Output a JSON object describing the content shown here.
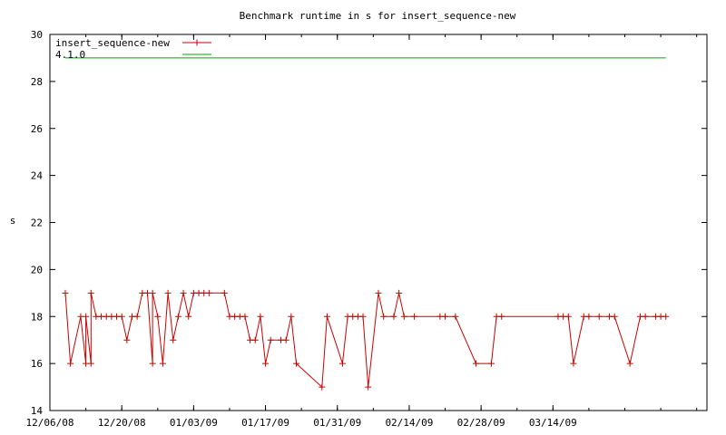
{
  "chart_data": {
    "type": "line",
    "title": "Benchmark runtime in s for insert_sequence-new",
    "xlabel": "",
    "ylabel": "s",
    "ylim": [
      14,
      30
    ],
    "yticks": [
      14,
      16,
      18,
      20,
      22,
      24,
      26,
      28,
      30
    ],
    "xlim": [
      "2008-12-06",
      "2009-04-13"
    ],
    "xticks": [
      "2008-12-06",
      "2008-12-20",
      "2009-01-03",
      "2009-01-17",
      "2009-01-31",
      "2009-02-14",
      "2009-02-28",
      "2009-03-14"
    ],
    "xtick_labels": [
      "12/06/08",
      "12/20/08",
      "01/03/09",
      "01/17/09",
      "01/31/09",
      "02/14/09",
      "02/28/09",
      "03/14/09"
    ],
    "legend_position": "top-left",
    "grid": false,
    "series": [
      {
        "name": "insert_sequence-new",
        "color": "#cc0000",
        "marker": "plus",
        "points": [
          [
            "2008-12-09",
            19
          ],
          [
            "2008-12-10",
            16
          ],
          [
            "2008-12-12",
            18
          ],
          [
            "2008-12-13",
            16
          ],
          [
            "2008-12-13",
            18
          ],
          [
            "2008-12-14",
            16
          ],
          [
            "2008-12-14",
            19
          ],
          [
            "2008-12-15",
            18
          ],
          [
            "2008-12-16",
            18
          ],
          [
            "2008-12-17",
            18
          ],
          [
            "2008-12-18",
            18
          ],
          [
            "2008-12-19",
            18
          ],
          [
            "2008-12-20",
            18
          ],
          [
            "2008-12-21",
            17
          ],
          [
            "2008-12-22",
            18
          ],
          [
            "2008-12-23",
            18
          ],
          [
            "2008-12-24",
            19
          ],
          [
            "2008-12-25",
            19
          ],
          [
            "2008-12-26",
            16
          ],
          [
            "2008-12-26",
            19
          ],
          [
            "2008-12-27",
            18
          ],
          [
            "2008-12-28",
            16
          ],
          [
            "2008-12-29",
            19
          ],
          [
            "2008-12-30",
            17
          ],
          [
            "2008-12-31",
            18
          ],
          [
            "2009-01-01",
            19
          ],
          [
            "2009-01-02",
            18
          ],
          [
            "2009-01-03",
            19
          ],
          [
            "2009-01-04",
            19
          ],
          [
            "2009-01-05",
            19
          ],
          [
            "2009-01-06",
            19
          ],
          [
            "2009-01-09",
            19
          ],
          [
            "2009-01-10",
            18
          ],
          [
            "2009-01-11",
            18
          ],
          [
            "2009-01-12",
            18
          ],
          [
            "2009-01-13",
            18
          ],
          [
            "2009-01-14",
            17
          ],
          [
            "2009-01-15",
            17
          ],
          [
            "2009-01-16",
            18
          ],
          [
            "2009-01-17",
            16
          ],
          [
            "2009-01-18",
            17
          ],
          [
            "2009-01-20",
            17
          ],
          [
            "2009-01-21",
            17
          ],
          [
            "2009-01-22",
            18
          ],
          [
            "2009-01-23",
            16
          ],
          [
            "2009-01-28",
            15
          ],
          [
            "2009-01-29",
            18
          ],
          [
            "2009-02-01",
            16
          ],
          [
            "2009-02-02",
            18
          ],
          [
            "2009-02-03",
            18
          ],
          [
            "2009-02-04",
            18
          ],
          [
            "2009-02-05",
            18
          ],
          [
            "2009-02-06",
            15
          ],
          [
            "2009-02-08",
            19
          ],
          [
            "2009-02-09",
            18
          ],
          [
            "2009-02-11",
            18
          ],
          [
            "2009-02-12",
            19
          ],
          [
            "2009-02-13",
            18
          ],
          [
            "2009-02-15",
            18
          ],
          [
            "2009-02-20",
            18
          ],
          [
            "2009-02-21",
            18
          ],
          [
            "2009-02-23",
            18
          ],
          [
            "2009-02-27",
            16
          ],
          [
            "2009-03-02",
            16
          ],
          [
            "2009-03-03",
            18
          ],
          [
            "2009-03-04",
            18
          ],
          [
            "2009-03-15",
            18
          ],
          [
            "2009-03-16",
            18
          ],
          [
            "2009-03-17",
            18
          ],
          [
            "2009-03-18",
            16
          ],
          [
            "2009-03-20",
            18
          ],
          [
            "2009-03-21",
            18
          ],
          [
            "2009-03-23",
            18
          ],
          [
            "2009-03-25",
            18
          ],
          [
            "2009-03-26",
            18
          ],
          [
            "2009-03-29",
            16
          ],
          [
            "2009-03-31",
            18
          ],
          [
            "2009-04-01",
            18
          ],
          [
            "2009-04-03",
            18
          ],
          [
            "2009-04-04",
            18
          ],
          [
            "2009-04-05",
            18
          ]
        ]
      },
      {
        "name": "4.1.0",
        "color": "#00aa00",
        "marker": "none",
        "points": [
          [
            "2008-12-09",
            29
          ],
          [
            "2009-04-05",
            29
          ]
        ]
      }
    ]
  }
}
